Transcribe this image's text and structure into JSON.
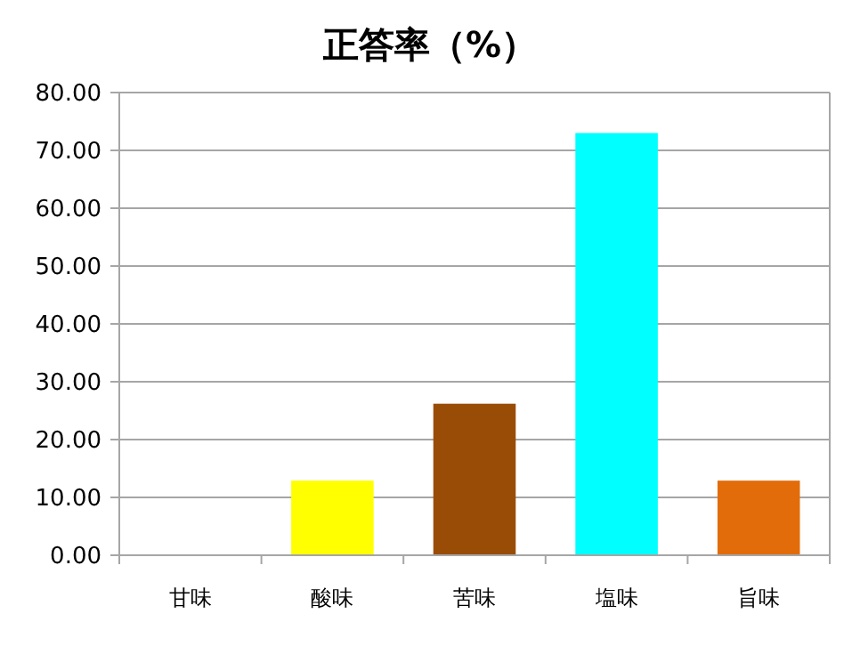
{
  "chart_data": {
    "type": "bar",
    "title": "正答率（%）",
    "categories": [
      "甘味",
      "酸味",
      "苦味",
      "塩味",
      "旨味"
    ],
    "values": [
      0,
      12.9,
      26.2,
      73.0,
      12.9
    ],
    "colors": [
      "#4f81bd",
      "#ffff00",
      "#994c05",
      "#00ffff",
      "#e36c0a"
    ],
    "ylim": [
      0,
      80
    ],
    "yticks": [
      {
        "value": 0,
        "label": "0.00"
      },
      {
        "value": 10,
        "label": "10.00"
      },
      {
        "value": 20,
        "label": "20.00"
      },
      {
        "value": 30,
        "label": "30.00"
      },
      {
        "value": 40,
        "label": "40.00"
      },
      {
        "value": 50,
        "label": "50.00"
      },
      {
        "value": 60,
        "label": "60.00"
      },
      {
        "value": 70,
        "label": "70.00"
      },
      {
        "value": 80,
        "label": "80.00"
      }
    ],
    "grid": "y"
  }
}
